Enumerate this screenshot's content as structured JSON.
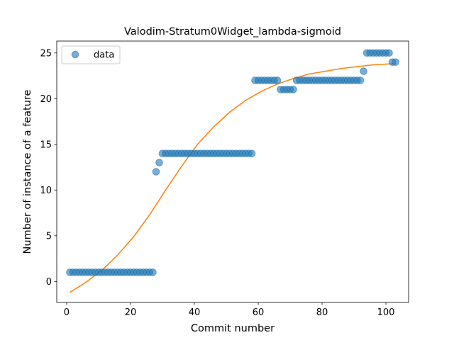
{
  "chart_data": {
    "type": "scatter",
    "title": "Valodim-Stratum0Widget_lambda-sigmoid",
    "xlabel": "Commit number",
    "ylabel": "Number of instance of a feature",
    "xlim": [
      -3.1,
      107.1
    ],
    "ylim": [
      -2.3,
      26.3
    ],
    "xticks": [
      0,
      20,
      40,
      60,
      80,
      100
    ],
    "yticks": [
      0,
      5,
      10,
      15,
      20,
      25
    ],
    "grid": false,
    "legend": {
      "placement": "top-left",
      "entries": [
        "data"
      ]
    },
    "series": [
      {
        "name": "data",
        "kind": "scatter",
        "color": "#1f77b4",
        "points": [
          [
            1,
            1
          ],
          [
            2,
            1
          ],
          [
            3,
            1
          ],
          [
            4,
            1
          ],
          [
            5,
            1
          ],
          [
            6,
            1
          ],
          [
            7,
            1
          ],
          [
            8,
            1
          ],
          [
            9,
            1
          ],
          [
            10,
            1
          ],
          [
            11,
            1
          ],
          [
            12,
            1
          ],
          [
            13,
            1
          ],
          [
            14,
            1
          ],
          [
            15,
            1
          ],
          [
            16,
            1
          ],
          [
            17,
            1
          ],
          [
            18,
            1
          ],
          [
            19,
            1
          ],
          [
            20,
            1
          ],
          [
            21,
            1
          ],
          [
            22,
            1
          ],
          [
            23,
            1
          ],
          [
            24,
            1
          ],
          [
            25,
            1
          ],
          [
            26,
            1
          ],
          [
            27,
            1
          ],
          [
            28,
            12
          ],
          [
            29,
            13
          ],
          [
            30,
            14
          ],
          [
            31,
            14
          ],
          [
            32,
            14
          ],
          [
            33,
            14
          ],
          [
            34,
            14
          ],
          [
            35,
            14
          ],
          [
            36,
            14
          ],
          [
            37,
            14
          ],
          [
            38,
            14
          ],
          [
            39,
            14
          ],
          [
            40,
            14
          ],
          [
            41,
            14
          ],
          [
            42,
            14
          ],
          [
            43,
            14
          ],
          [
            44,
            14
          ],
          [
            45,
            14
          ],
          [
            46,
            14
          ],
          [
            47,
            14
          ],
          [
            48,
            14
          ],
          [
            49,
            14
          ],
          [
            50,
            14
          ],
          [
            51,
            14
          ],
          [
            52,
            14
          ],
          [
            53,
            14
          ],
          [
            54,
            14
          ],
          [
            55,
            14
          ],
          [
            56,
            14
          ],
          [
            57,
            14
          ],
          [
            58,
            14
          ],
          [
            59,
            22
          ],
          [
            60,
            22
          ],
          [
            61,
            22
          ],
          [
            62,
            22
          ],
          [
            63,
            22
          ],
          [
            64,
            22
          ],
          [
            65,
            22
          ],
          [
            66,
            22
          ],
          [
            67,
            21
          ],
          [
            68,
            21
          ],
          [
            69,
            21
          ],
          [
            70,
            21
          ],
          [
            71,
            21
          ],
          [
            72,
            22
          ],
          [
            73,
            22
          ],
          [
            74,
            22
          ],
          [
            75,
            22
          ],
          [
            76,
            22
          ],
          [
            77,
            22
          ],
          [
            78,
            22
          ],
          [
            79,
            22
          ],
          [
            80,
            22
          ],
          [
            81,
            22
          ],
          [
            82,
            22
          ],
          [
            83,
            22
          ],
          [
            84,
            22
          ],
          [
            85,
            22
          ],
          [
            86,
            22
          ],
          [
            87,
            22
          ],
          [
            88,
            22
          ],
          [
            89,
            22
          ],
          [
            90,
            22
          ],
          [
            91,
            22
          ],
          [
            92,
            22
          ],
          [
            93,
            23
          ],
          [
            94,
            25
          ],
          [
            95,
            25
          ],
          [
            96,
            25
          ],
          [
            97,
            25
          ],
          [
            98,
            25
          ],
          [
            99,
            25
          ],
          [
            100,
            25
          ],
          [
            101,
            25
          ],
          [
            102,
            24
          ],
          [
            103,
            24
          ]
        ]
      },
      {
        "name": "",
        "kind": "line",
        "color": "#ff7f0e",
        "x": [
          1,
          6,
          11,
          16,
          21,
          26,
          31,
          36,
          41,
          46,
          51,
          56,
          61,
          66,
          71,
          76,
          81,
          86,
          91,
          96,
          101,
          103
        ],
        "y": [
          -1.2,
          -0.1,
          1.2,
          2.9,
          4.9,
          7.3,
          10.0,
          12.6,
          15.0,
          16.9,
          18.5,
          19.8,
          20.8,
          21.6,
          22.2,
          22.7,
          23.0,
          23.3,
          23.5,
          23.7,
          23.8,
          23.8
        ]
      }
    ]
  }
}
